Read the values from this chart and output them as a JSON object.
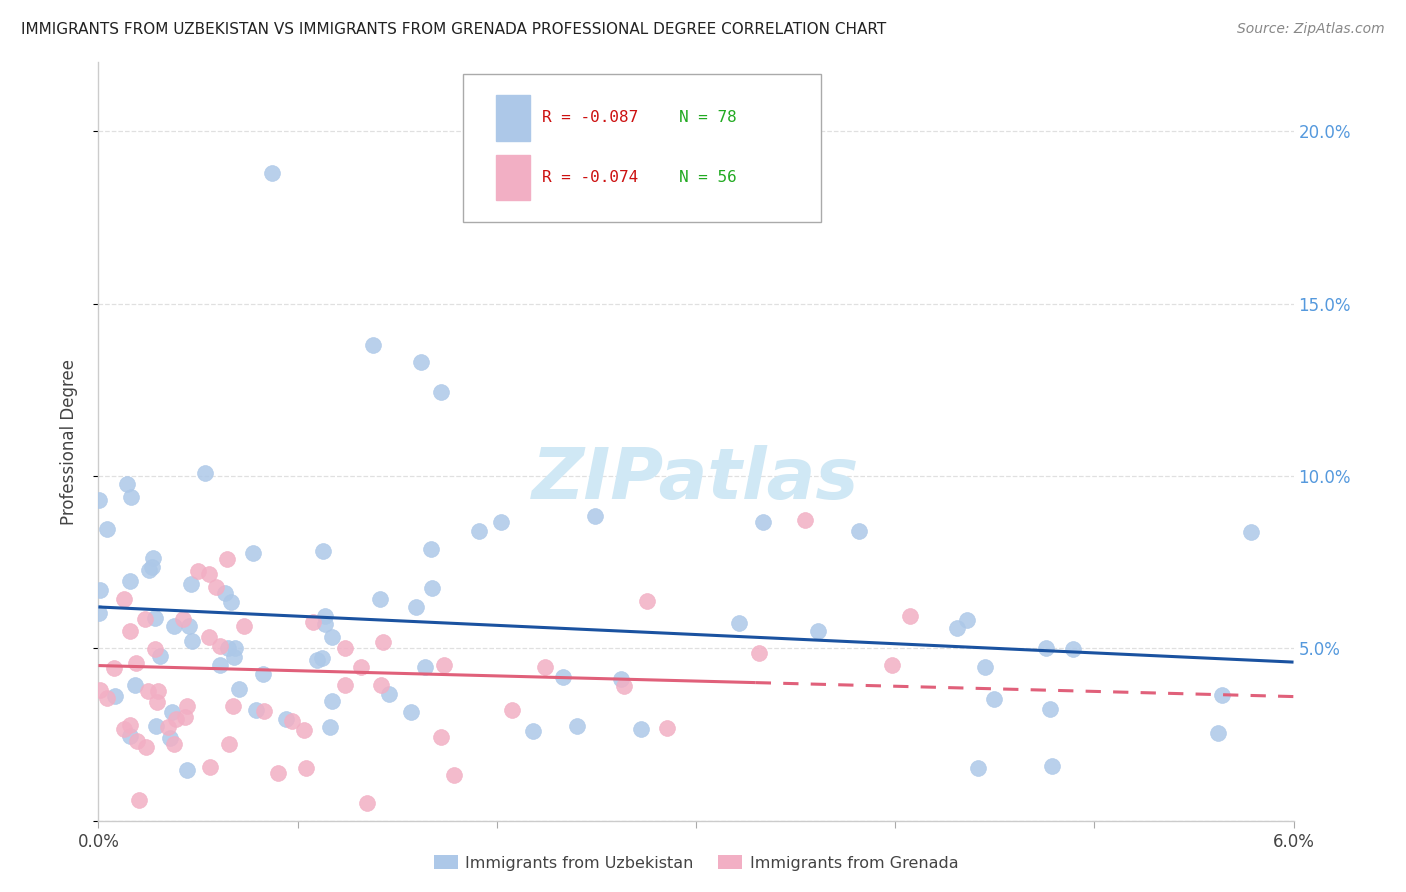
{
  "title": "IMMIGRANTS FROM UZBEKISTAN VS IMMIGRANTS FROM GRENADA PROFESSIONAL DEGREE CORRELATION CHART",
  "source": "Source: ZipAtlas.com",
  "ylabel": "Professional Degree",
  "xlim": [
    0.0,
    6.0
  ],
  "ylim": [
    0.0,
    22.0
  ],
  "legend_r1": "R = -0.087",
  "legend_n1": "N = 78",
  "legend_r2": "R = -0.074",
  "legend_n2": "N = 56",
  "color_uzbekistan": "#adc8e8",
  "color_grenada": "#f2afc4",
  "trendline_color_uzbekistan": "#1a52a0",
  "trendline_color_grenada": "#e0607a",
  "background_color": "#ffffff",
  "grid_color": "#e0e0e0",
  "watermark_color": "#d0e8f5",
  "right_axis_color": "#5599dd",
  "legend_text_r_color": "#cc1111",
  "legend_text_n_color": "#22aa22",
  "bottom_label_color": "#444444",
  "ylabel_color": "#444444",
  "title_color": "#222222",
  "source_color": "#888888",
  "uz_trend_y0": 6.2,
  "uz_trend_y1": 4.6,
  "gr_trend_y0": 4.5,
  "gr_trend_y1": 3.6,
  "gr_dash_start_x": 3.3
}
